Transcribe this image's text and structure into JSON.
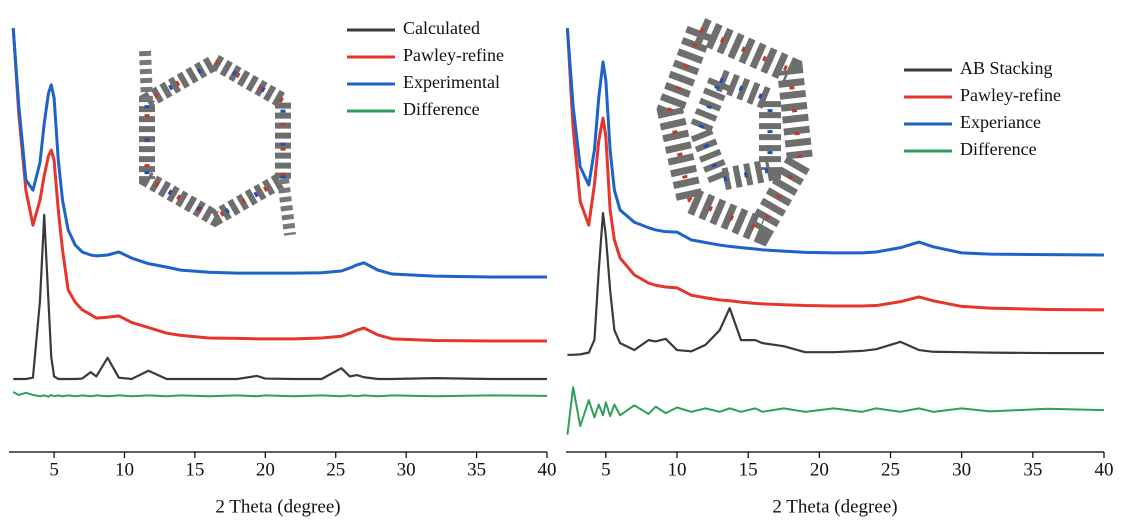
{
  "chart_data": [
    {
      "type": "line",
      "xlabel": "2 Theta (degree)",
      "xlim": [
        1.8,
        40
      ],
      "xticks": [
        5,
        10,
        15,
        20,
        25,
        30,
        35,
        40
      ],
      "ylim": [
        0,
        100
      ],
      "grid": false,
      "legend": "upper right",
      "x": [
        2.1,
        2.5,
        3,
        3.5,
        4,
        4.3,
        4.6,
        4.8,
        5,
        5.3,
        5.6,
        6,
        6.5,
        7,
        7.6,
        8,
        8.8,
        9.6,
        10.5,
        11.7,
        13,
        14,
        16,
        18,
        19.4,
        20,
        22,
        24,
        25.4,
        26,
        26.5,
        27,
        28,
        29,
        32,
        36,
        40
      ],
      "series": [
        {
          "name": "Calculated",
          "color": "#3a3a3a",
          "values": [
            16.9,
            16.9,
            16.9,
            17.2,
            35,
            54.9,
            35,
            22,
            17.5,
            16.9,
            16.9,
            16.9,
            16.9,
            17,
            18.5,
            17.5,
            21.8,
            17.2,
            16.9,
            18.8,
            16.9,
            16.9,
            16.9,
            16.9,
            17.6,
            17,
            16.9,
            16.9,
            19.4,
            17.5,
            17.8,
            17.3,
            16.9,
            16.9,
            17.1,
            16.9,
            16.9
          ]
        },
        {
          "name": "Pawley-refine",
          "color": "#e5352d",
          "values": [
            98.1,
            78,
            60.6,
            52.5,
            58.3,
            64,
            68.5,
            69.9,
            67.6,
            56,
            46.8,
            37.5,
            34.7,
            32.9,
            31.8,
            31,
            31.2,
            31.5,
            30,
            28.8,
            27.5,
            27,
            26.4,
            26.3,
            26.2,
            26.2,
            26.2,
            26.4,
            26.8,
            27.5,
            28.2,
            28.7,
            27.1,
            26.2,
            25.8,
            25.7,
            25.7
          ]
        },
        {
          "name": "Experimental",
          "color": "#1d63c8",
          "values": [
            98.1,
            80,
            63,
            60.6,
            67,
            76,
            83,
            85,
            82,
            67.6,
            58.3,
            51.4,
            47.9,
            46.3,
            45.6,
            45.4,
            45.6,
            46.3,
            44.9,
            43.6,
            42.8,
            42.1,
            41.6,
            41.4,
            41.4,
            41.4,
            41.4,
            41.5,
            41.9,
            42.6,
            43.3,
            43.8,
            42.1,
            41.2,
            40.7,
            40.5,
            40.5
          ]
        },
        {
          "name": "Difference",
          "color": "#2e9f5c",
          "values": [
            13.9,
            13.2,
            13.7,
            13.2,
            12.9,
            13.1,
            12.8,
            13.2,
            12.9,
            13.1,
            12.9,
            13.1,
            12.9,
            13.1,
            12.9,
            13.1,
            12.9,
            13.1,
            12.9,
            13.1,
            12.9,
            13.1,
            12.9,
            13.1,
            12.9,
            13.1,
            12.9,
            13.1,
            12.9,
            13.1,
            12.9,
            13.1,
            12.9,
            13.1,
            12.9,
            13.1,
            13
          ]
        }
      ]
    },
    {
      "type": "line",
      "xlabel": "2 Theta (degree)",
      "xlim": [
        2.2,
        40
      ],
      "xticks": [
        5,
        10,
        15,
        20,
        25,
        30,
        35,
        40
      ],
      "ylim": [
        0,
        100
      ],
      "grid": false,
      "legend": "upper right",
      "x": [
        2.3,
        2.7,
        3.2,
        3.8,
        4.2,
        4.5,
        4.8,
        5,
        5.3,
        5.6,
        6,
        7,
        8,
        8.5,
        9.2,
        10,
        11,
        12,
        13,
        13.7,
        14.5,
        15.5,
        16,
        17.5,
        19,
        21,
        23,
        24,
        25.7,
        27,
        28,
        30,
        32,
        36,
        40
      ],
      "series": [
        {
          "name": "AB Stacking",
          "color": "#3a3a3a",
          "values": [
            22.5,
            22.5,
            22.6,
            23,
            26,
            42,
            55.3,
            50,
            37.5,
            28.2,
            25.2,
            23.6,
            25.9,
            25.6,
            26.2,
            23.6,
            23.3,
            24.8,
            28.2,
            33.3,
            25.9,
            25.9,
            25.2,
            24.5,
            23.1,
            23.1,
            23.4,
            23.8,
            25.5,
            23.6,
            23.2,
            23.1,
            23,
            22.9,
            22.9
          ]
        },
        {
          "name": "Pawley-refine",
          "color": "#e5352d",
          "values": [
            98.1,
            75,
            58,
            52.5,
            62,
            72,
            77.3,
            73,
            56,
            49.1,
            44.9,
            41,
            39.1,
            38.6,
            38.2,
            38,
            36.3,
            35.7,
            35.2,
            35,
            34.7,
            34.4,
            34.3,
            34.1,
            33.9,
            33.8,
            33.8,
            33.9,
            34.8,
            35.9,
            35,
            33.7,
            33.3,
            33,
            32.9
          ]
        },
        {
          "name": "Experiance",
          "color": "#1d63c8",
          "values": [
            98.1,
            80,
            66,
            61.8,
            70,
            82,
            90.3,
            86,
            69.9,
            60.6,
            56,
            53.2,
            51.9,
            51.4,
            51,
            50.9,
            49.1,
            48.5,
            47.9,
            47.6,
            47.3,
            47,
            46.8,
            46.5,
            46.2,
            46.1,
            46.1,
            46.3,
            47.3,
            48.6,
            47.5,
            46.1,
            45.8,
            45.7,
            45.6
          ]
        },
        {
          "name": "Difference",
          "color": "#2e9f5c",
          "values": [
            4,
            15,
            6,
            12,
            8,
            11,
            8.5,
            11.5,
            8.3,
            11,
            8.5,
            10.8,
            8.8,
            10.5,
            9,
            10.3,
            9.3,
            10.1,
            9.3,
            10.1,
            9.3,
            10.1,
            9.3,
            10.1,
            9.3,
            10.1,
            9.3,
            10.1,
            9.3,
            10.1,
            9.3,
            10.1,
            9.4,
            10,
            9.7
          ]
        }
      ]
    }
  ]
}
